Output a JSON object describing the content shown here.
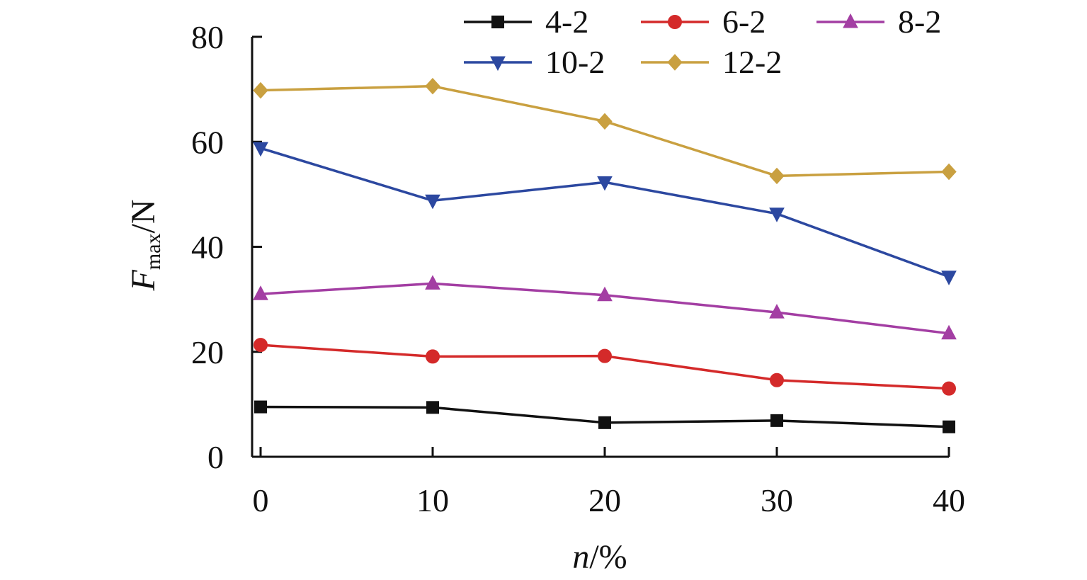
{
  "chart_data": {
    "type": "line",
    "title": "",
    "xlabel": {
      "var": "n",
      "unit": "/%"
    },
    "ylabel": {
      "var": "F",
      "sub": "max",
      "unit": "/N"
    },
    "x": [
      0,
      10,
      20,
      30,
      40
    ],
    "xticks": [
      0,
      10,
      20,
      30,
      40
    ],
    "yticks": [
      0,
      20,
      40,
      60,
      80
    ],
    "xlim": [
      0,
      40
    ],
    "ylim": [
      0,
      80
    ],
    "grid": false,
    "legend_position": "top",
    "series": [
      {
        "name": "4-2",
        "marker": "square",
        "color": "#111111",
        "values": [
          9.5,
          9.4,
          6.5,
          6.9,
          5.7
        ]
      },
      {
        "name": "6-2",
        "marker": "circle",
        "color": "#d42a2a",
        "values": [
          21.3,
          19.1,
          19.2,
          14.6,
          13.0
        ]
      },
      {
        "name": "8-2",
        "marker": "triangle-up",
        "color": "#a33ea3",
        "values": [
          31.0,
          33.0,
          30.8,
          27.5,
          23.5
        ]
      },
      {
        "name": "10-2",
        "marker": "triangle-down",
        "color": "#2c48a0",
        "values": [
          58.8,
          48.8,
          52.3,
          46.3,
          34.3
        ]
      },
      {
        "name": "12-2",
        "marker": "diamond",
        "color": "#c9a040",
        "values": [
          69.8,
          70.6,
          63.9,
          53.5,
          54.3
        ]
      }
    ]
  }
}
